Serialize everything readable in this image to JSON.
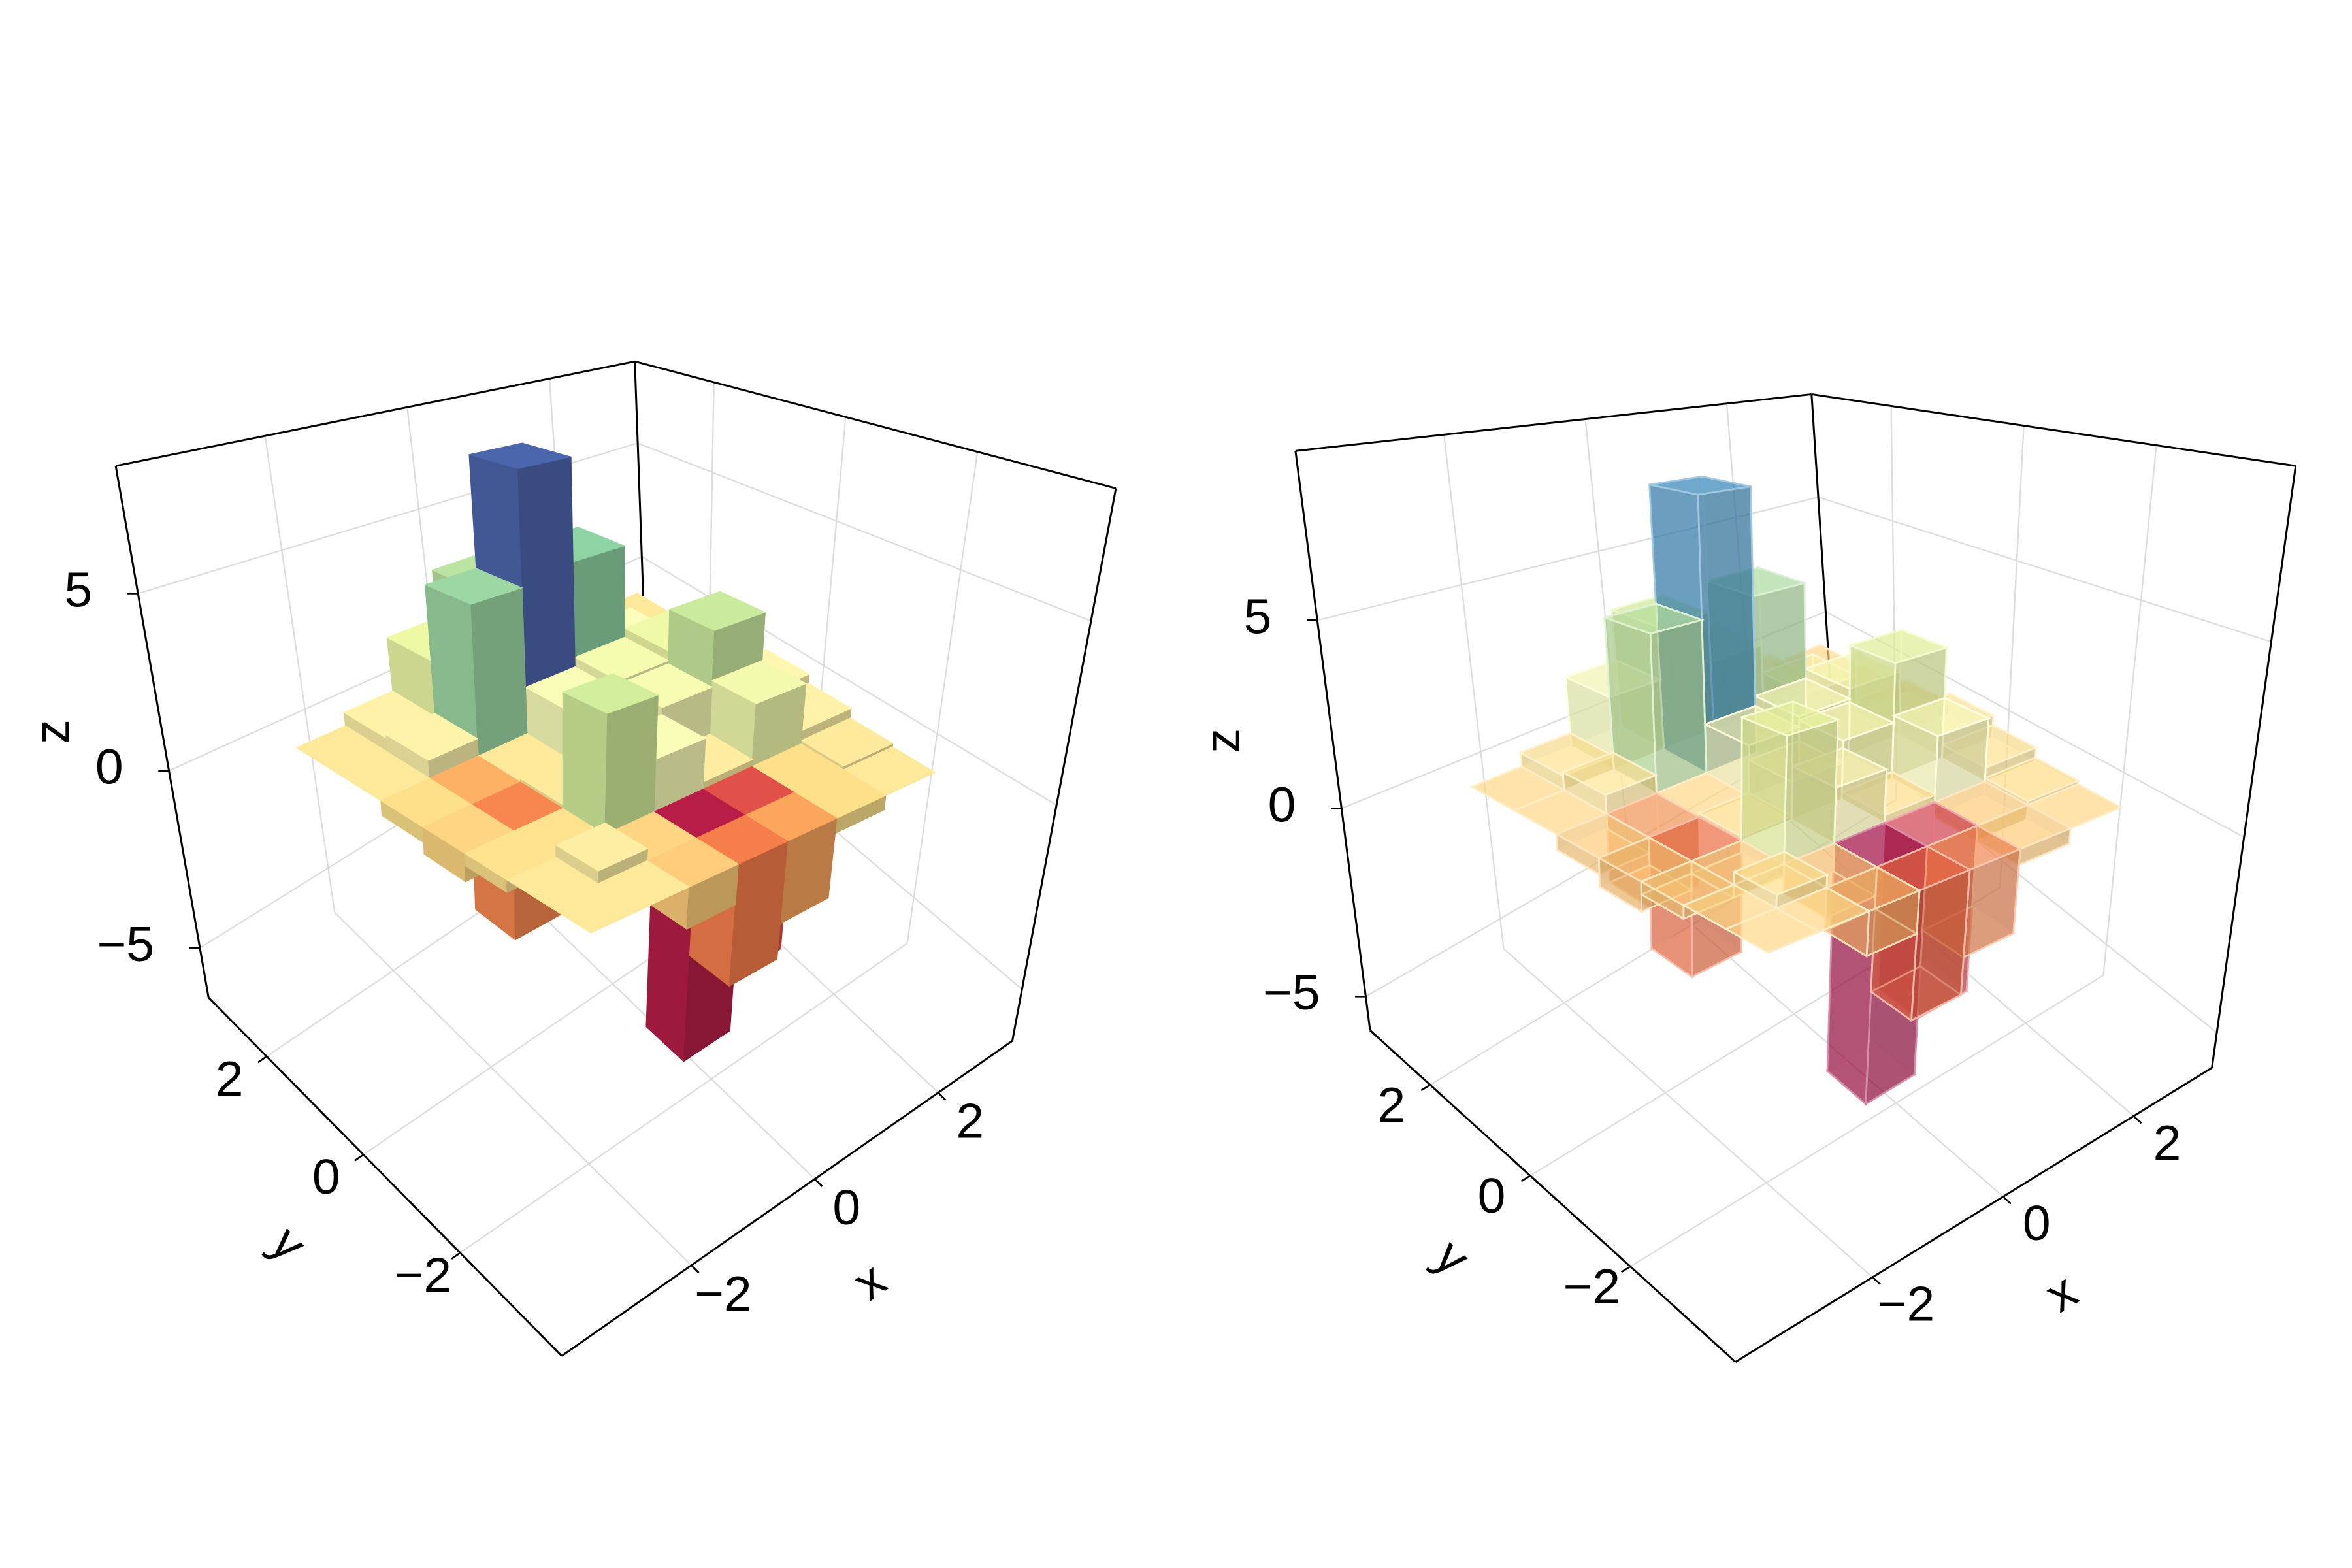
{
  "chart_data": [
    {
      "type": "bar3d",
      "xlabel": "x",
      "ylabel": "y",
      "zlabel": "z",
      "x": [
        -2.25,
        -1.5,
        -0.75,
        0,
        0.75,
        1.5,
        2.25
      ],
      "y": [
        -2.25,
        -1.5,
        -0.75,
        0,
        0.75,
        1.5,
        2.25
      ],
      "z": [
        [
          0,
          0,
          -1.0,
          -3.0,
          -2.1,
          -0.4,
          0
        ],
        [
          0,
          0.3,
          -0.7,
          -5.7,
          -4.3,
          -0.4,
          0.1
        ],
        [
          -0.3,
          -0.3,
          3.1,
          1.4,
          0.2,
          1.8,
          0.4
        ],
        [
          -0.7,
          -2.8,
          0.1,
          1.0,
          1.6,
          3.3,
          0.7
        ],
        [
          -0.4,
          -1.8,
          0,
          1.4,
          1.7,
          2.0,
          0.4
        ],
        [
          0,
          0.5,
          4.4,
          8.0,
          4.7,
          1.2,
          0.1
        ],
        [
          0,
          0.4,
          2.1,
          3.7,
          2.1,
          0.4,
          0
        ]
      ],
      "xlim": [
        -4.1,
        3.2
      ],
      "ylim": [
        -4.1,
        3.2
      ],
      "zlim": [
        -6.4,
        8.6
      ],
      "xticks": [
        {
          "value": -2,
          "label": "−2"
        },
        0,
        2
      ],
      "yticks": [
        {
          "value": -2,
          "label": "−2"
        },
        0,
        2
      ],
      "zticks": [
        {
          "value": -5,
          "label": "−5"
        },
        0,
        5
      ],
      "grid": true,
      "colormap": [
        "#9e0142",
        "#d53e4f",
        "#f46d43",
        "#fdae61",
        "#fee08b",
        "#ffffbf",
        "#e6f598",
        "#abdda4",
        "#66c2a5",
        "#3288bd",
        "#5e4fa2"
      ]
    },
    {
      "type": "bar3d",
      "xlabel": "x",
      "ylabel": "y",
      "zlabel": "z",
      "x": [
        -2.25,
        -1.5,
        -0.75,
        0,
        0.75,
        1.5,
        2.25
      ],
      "y": [
        -2.25,
        -1.5,
        -0.75,
        0,
        0.75,
        1.5,
        2.25
      ],
      "z": [
        [
          0,
          0,
          -1.0,
          -3.0,
          -2.1,
          -0.4,
          0
        ],
        [
          0,
          0.3,
          -0.7,
          -5.7,
          -4.3,
          -0.4,
          0.1
        ],
        [
          -0.3,
          -0.3,
          3.1,
          1.4,
          0.2,
          1.8,
          0.4
        ],
        [
          -0.7,
          -2.8,
          0.1,
          1.0,
          1.6,
          3.3,
          0.7
        ],
        [
          -0.4,
          -1.8,
          0,
          1.4,
          1.7,
          2.0,
          0.4
        ],
        [
          0,
          0.5,
          4.4,
          8.0,
          4.7,
          1.2,
          0.1
        ],
        [
          0,
          0.4,
          2.1,
          3.7,
          2.1,
          0.4,
          0
        ]
      ],
      "xlim": [
        -4.1,
        3.2
      ],
      "ylim": [
        -4.1,
        3.2
      ],
      "zlim": [
        -5.9,
        9.5
      ],
      "xticks": [
        {
          "value": -2,
          "label": "−2"
        },
        0,
        2
      ],
      "yticks": [
        {
          "value": -2,
          "label": "−2"
        },
        0,
        2
      ],
      "zticks": [
        {
          "value": -5,
          "label": "−5"
        },
        0,
        5
      ],
      "grid": true,
      "alpha": 0.45,
      "colormap": [
        "#9e0142",
        "#d53e4f",
        "#f46d43",
        "#fdae61",
        "#fee08b",
        "#ffffbf",
        "#e6f598",
        "#abdda4",
        "#66c2a5",
        "#3288bd",
        "#5e4fa2"
      ]
    }
  ]
}
